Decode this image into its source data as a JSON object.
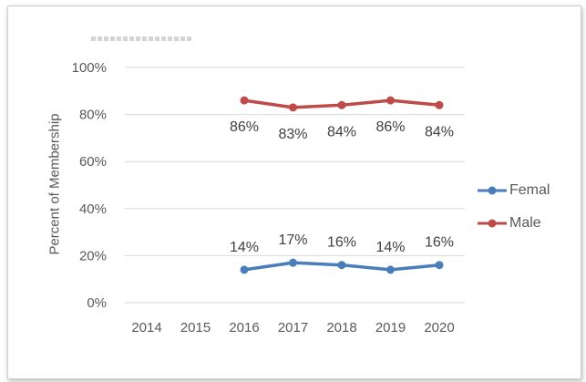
{
  "chart_data": {
    "type": "line",
    "title": "",
    "xlabel": "",
    "ylabel": "Percent of Membership",
    "categories": [
      "2014",
      "2015",
      "2016",
      "2017",
      "2018",
      "2019",
      "2020"
    ],
    "y_ticks": [
      "0%",
      "20%",
      "40%",
      "60%",
      "80%",
      "100%"
    ],
    "ylim": [
      0,
      100
    ],
    "grid": true,
    "legend_position": "right",
    "series": [
      {
        "name": "Femal",
        "color": "#4A7EBB",
        "values": [
          null,
          null,
          14,
          17,
          16,
          14,
          16
        ],
        "labels": [
          null,
          null,
          "14%",
          "17%",
          "16%",
          "14%",
          "16%"
        ],
        "label_position": "above"
      },
      {
        "name": "Male",
        "color": "#BE4B48",
        "values": [
          null,
          null,
          86,
          83,
          84,
          86,
          84
        ],
        "labels": [
          null,
          null,
          "86%",
          "83%",
          "84%",
          "86%",
          "84%"
        ],
        "label_position": "below"
      }
    ]
  }
}
